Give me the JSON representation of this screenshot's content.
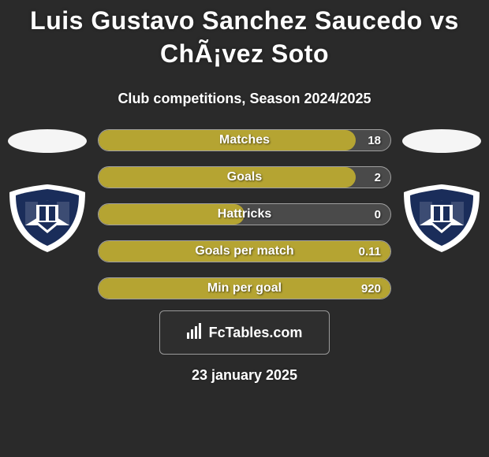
{
  "title": "Luis Gustavo Sanchez Saucedo vs ChÃ¡vez Soto",
  "subtitle": "Club competitions, Season 2024/2025",
  "date": "23 january 2025",
  "brand": "FcTables.com",
  "badge": {
    "bg": "#ffffff",
    "shield_color": "#1a2d5a",
    "accent": "#ffffff"
  },
  "stats": [
    {
      "label": "Matches",
      "value": "18",
      "fill_pct": 88
    },
    {
      "label": "Goals",
      "value": "2",
      "fill_pct": 88
    },
    {
      "label": "Hattricks",
      "value": "0",
      "fill_pct": 50
    },
    {
      "label": "Goals per match",
      "value": "0.11",
      "fill_pct": 100
    },
    {
      "label": "Min per goal",
      "value": "920",
      "fill_pct": 100
    }
  ],
  "colors": {
    "bar_fill": "#b5a432",
    "bar_bg": "#4a4a4a",
    "bar_border": "#a0a0a0",
    "ellipse": "#f5f5f5",
    "page_bg": "#2a2a2a"
  }
}
